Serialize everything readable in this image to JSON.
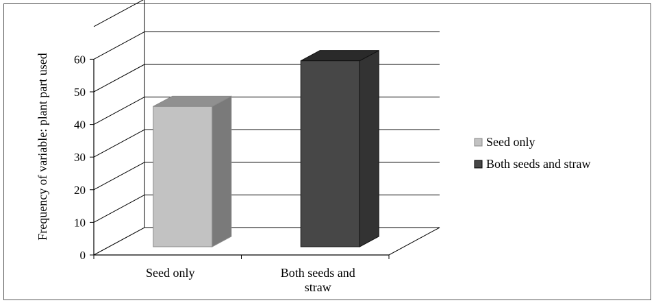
{
  "chart_data": {
    "type": "bar",
    "style": "3d-column",
    "title": "",
    "xlabel": "",
    "ylabel": "Frequency of variable: plant part used",
    "categories": [
      "Seed only",
      "Both seeds and straw"
    ],
    "category_lines": [
      [
        "Seed only"
      ],
      [
        "Both seeds and",
        "straw"
      ]
    ],
    "values": [
      43,
      57
    ],
    "yticks": [
      0,
      10,
      20,
      30,
      40,
      50,
      60
    ],
    "ylim": [
      0,
      70
    ],
    "grid": true,
    "legend_position": "right",
    "legend": [
      "Seed only",
      "Both seeds and straw"
    ],
    "colors": [
      "#c0c0c0",
      "#474747"
    ]
  }
}
